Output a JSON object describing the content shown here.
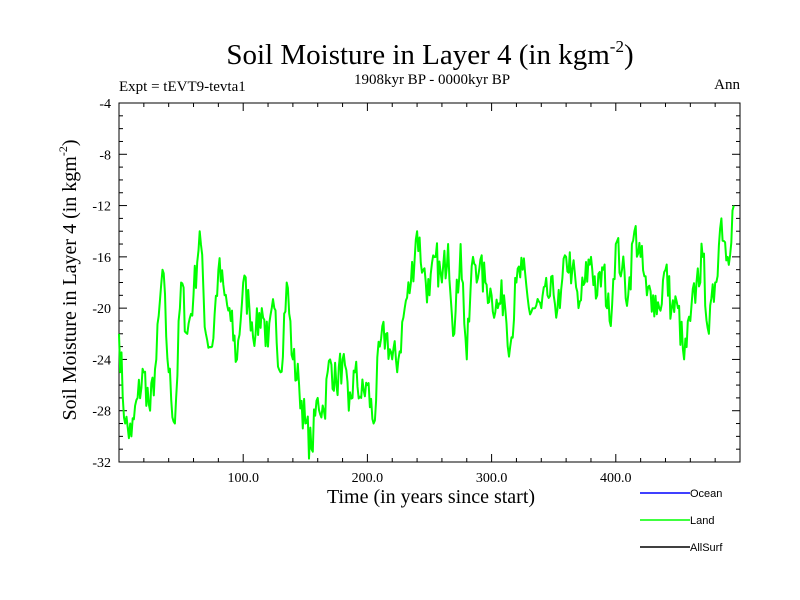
{
  "chart_data": {
    "type": "line",
    "title": "Soil Moisture in Layer 4 (in kgm",
    "title_sup": "-2",
    "title_close": ")",
    "subtitle_left": "Expt = tEVT9-tevta1",
    "subtitle_center": "1908kyr BP - 0000kyr BP",
    "subtitle_right": "Ann",
    "xlabel": "Time (in years since start)",
    "ylabel": "Soil Moisture in Layer 4 (in kgm",
    "ylabel_sup": "-2",
    "ylabel_close": ")",
    "xlim": [
      0,
      500
    ],
    "ylim": [
      -32,
      -4
    ],
    "x_ticks": [
      {
        "value": 100,
        "label": "100.0"
      },
      {
        "value": 200,
        "label": "200.0"
      },
      {
        "value": 300,
        "label": "300.0"
      },
      {
        "value": 400,
        "label": "400.0"
      }
    ],
    "y_ticks": [
      {
        "value": -4,
        "label": "-4"
      },
      {
        "value": -8,
        "label": "-8"
      },
      {
        "value": -12,
        "label": "-12"
      },
      {
        "value": -16,
        "label": "-16"
      },
      {
        "value": -20,
        "label": "-20"
      },
      {
        "value": -24,
        "label": "-24"
      },
      {
        "value": -28,
        "label": "-28"
      },
      {
        "value": -32,
        "label": "-32"
      }
    ],
    "legend_position": "bottom-right",
    "legend": [
      {
        "name": "Ocean",
        "color": "#0000ff"
      },
      {
        "name": "Land",
        "color": "#00ff00"
      },
      {
        "name": "AllSurf",
        "color": "#000000"
      }
    ],
    "series": [
      {
        "name": "Land",
        "color": "#00ff00",
        "x_start": 0,
        "x_step": 5,
        "values": [
          -22,
          -29,
          -30,
          -27,
          -25,
          -28,
          -24,
          -17,
          -25,
          -29,
          -18,
          -22,
          -19,
          -14,
          -22,
          -23,
          -17,
          -19,
          -21,
          -24,
          -18,
          -20,
          -22,
          -20,
          -23,
          -20,
          -25,
          -18,
          -24,
          -26,
          -29,
          -31,
          -27,
          -28,
          -24,
          -26,
          -24,
          -28,
          -25,
          -27,
          -26,
          -29,
          -23,
          -22,
          -24,
          -24,
          -20,
          -18,
          -14,
          -17,
          -19,
          -16,
          -18,
          -15,
          -22,
          -15,
          -24,
          -16,
          -17,
          -18,
          -19,
          -20,
          -19,
          -23,
          -18,
          -17,
          -20,
          -20,
          -20,
          -19,
          -19,
          -20,
          -16,
          -17,
          -20,
          -18,
          -16,
          -19,
          -17,
          -21,
          -15,
          -17,
          -19,
          -14,
          -16,
          -19,
          -19,
          -20,
          -17,
          -20,
          -20,
          -24,
          -21,
          -18,
          -16,
          -22,
          -18,
          -13,
          -16,
          -12
        ]
      }
    ]
  }
}
